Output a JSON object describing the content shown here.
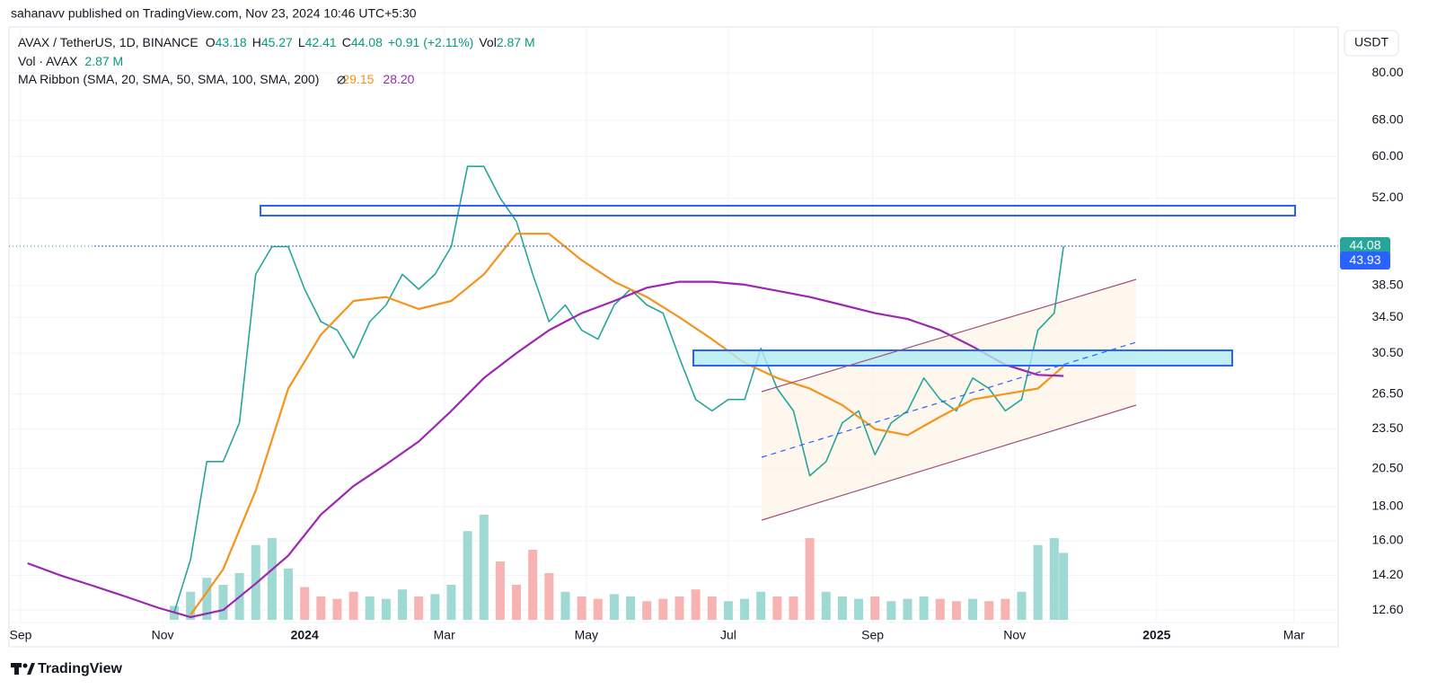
{
  "header": "sahanavv published on TradingView.com, Nov 23, 2024 10:46 UTC+5:30",
  "footer": "TradingView",
  "chart_data": {
    "type": "line",
    "unit": "USDT",
    "log_scale": true,
    "grid": true,
    "legend": {
      "symbol": "AVAX / TetherUS, 1D, BINANCE",
      "ohlc": [
        {
          "key": "O",
          "value": 43.18
        },
        {
          "key": "H",
          "value": 45.27
        },
        {
          "key": "L",
          "value": 42.41
        },
        {
          "key": "C",
          "value": 44.08
        }
      ],
      "change": "+0.91 (+2.11%)",
      "vol_key": "Vol",
      "vol": "2.87 M"
    },
    "volume_legend": {
      "name": "Vol · AVAX",
      "value": "2.87 M"
    },
    "ma_legend": {
      "name": "MA Ribbon (SMA, 20, SMA, 50, SMA, 100, SMA, 200)",
      "values": [
        29.15,
        {
          "value": 28.2,
          "label": "28.20"
        }
      ]
    },
    "mark_price": 43.93,
    "xlim": [
      "2023-08-27",
      "2025-03-20"
    ],
    "xticks": [
      {
        "value": "2023-09-01",
        "label": "Sep"
      },
      {
        "value": "2023-11-01",
        "label": "Nov"
      },
      {
        "value": "2024-01-01",
        "label": "2024"
      },
      {
        "value": "2024-03-01",
        "label": "Mar"
      },
      {
        "value": "2024-05-01",
        "label": "May"
      },
      {
        "value": "2024-07-01",
        "label": "Jul"
      },
      {
        "value": "2024-09-01",
        "label": "Sep"
      },
      {
        "value": "2024-11-01",
        "label": "Nov"
      },
      {
        "value": "2025-01-01",
        "label": "2025"
      },
      {
        "value": "2025-03-01",
        "label": "Mar"
      }
    ],
    "ylim": [
      12.07,
      93.7
    ],
    "yticks": [
      {
        "value": 80,
        "label": "80.00"
      },
      {
        "value": 68,
        "label": "68.00"
      },
      {
        "value": 60,
        "label": "60.00"
      },
      {
        "value": 52,
        "label": "52.00"
      },
      {
        "value": 38.5,
        "label": "38.50"
      },
      {
        "value": 34.5,
        "label": "34.50"
      },
      {
        "value": 30.5,
        "label": "30.50"
      },
      {
        "value": 26.5,
        "label": "26.50"
      },
      {
        "value": 23.5,
        "label": "23.50"
      },
      {
        "value": 20.5,
        "label": "20.50"
      },
      {
        "value": 18,
        "label": "18.00"
      },
      {
        "value": 16,
        "label": "16.00"
      },
      {
        "value": 14.2,
        "label": "14.20"
      },
      {
        "value": 12.6,
        "label": "12.60"
      }
    ],
    "series": [
      {
        "name": "AVAX / TetherUS, 1D, BINANCE",
        "color": "#26a69a",
        "x": [
          "2023-11-06",
          "2023-11-13",
          "2023-11-20",
          "2023-11-27",
          "2023-12-04",
          "2023-12-11",
          "2023-12-18",
          "2023-12-25",
          "2024-01-01",
          "2024-01-08",
          "2024-01-15",
          "2024-01-22",
          "2024-01-29",
          "2024-02-05",
          "2024-02-12",
          "2024-02-19",
          "2024-02-26",
          "2024-03-04",
          "2024-03-11",
          "2024-03-18",
          "2024-03-25",
          "2024-04-01",
          "2024-04-08",
          "2024-04-15",
          "2024-04-22",
          "2024-04-29",
          "2024-05-06",
          "2024-05-13",
          "2024-05-20",
          "2024-05-27",
          "2024-06-03",
          "2024-06-10",
          "2024-06-17",
          "2024-06-24",
          "2024-07-01",
          "2024-07-08",
          "2024-07-15",
          "2024-07-22",
          "2024-07-29",
          "2024-08-05",
          "2024-08-12",
          "2024-08-19",
          "2024-08-26",
          "2024-09-02",
          "2024-09-09",
          "2024-09-16",
          "2024-09-23",
          "2024-09-30",
          "2024-10-07",
          "2024-10-14",
          "2024-10-21",
          "2024-10-28",
          "2024-11-04",
          "2024-11-11",
          "2024-11-18",
          "2024-11-22"
        ],
        "values": [
          12.5,
          15,
          21,
          21,
          24,
          40,
          44,
          44,
          38,
          34,
          33,
          30,
          34,
          36,
          40,
          38,
          40,
          44,
          58,
          58,
          52,
          48,
          40,
          34,
          36,
          33,
          32,
          36,
          38,
          36,
          35,
          30,
          26,
          25,
          26,
          26,
          31,
          27,
          25,
          20,
          21,
          24,
          25,
          21.5,
          24,
          25,
          28,
          26,
          25,
          28,
          27,
          25,
          26,
          33,
          35,
          44.08
        ]
      },
      {
        "color": "#f7931a",
        "x": [
          "2023-11-13",
          "2023-11-27",
          "2023-12-11",
          "2023-12-25",
          "2024-01-08",
          "2024-01-22",
          "2024-02-05",
          "2024-02-19",
          "2024-03-04",
          "2024-03-18",
          "2024-04-01",
          "2024-04-15",
          "2024-04-29",
          "2024-05-13",
          "2024-05-27",
          "2024-06-10",
          "2024-06-24",
          "2024-07-08",
          "2024-07-22",
          "2024-08-05",
          "2024-08-19",
          "2024-09-02",
          "2024-09-16",
          "2024-09-30",
          "2024-10-14",
          "2024-10-28",
          "2024-11-11",
          "2024-11-22"
        ],
        "values": [
          12.4,
          14.5,
          19,
          27,
          32.5,
          36.5,
          37,
          35.5,
          36.5,
          40,
          46,
          46,
          42,
          39,
          37,
          34.5,
          32,
          29.5,
          28,
          27,
          25.5,
          23.5,
          23,
          24.5,
          26,
          26.5,
          27,
          29.15
        ]
      },
      {
        "color": "#9c27b0",
        "x": [
          "2023-09-04",
          "2023-09-18",
          "2023-10-02",
          "2023-10-16",
          "2023-10-30",
          "2023-11-13",
          "2023-11-27",
          "2023-12-11",
          "2023-12-25",
          "2024-01-08",
          "2024-01-22",
          "2024-02-05",
          "2024-02-19",
          "2024-03-04",
          "2024-03-18",
          "2024-04-01",
          "2024-04-15",
          "2024-04-29",
          "2024-05-13",
          "2024-05-27",
          "2024-06-10",
          "2024-06-24",
          "2024-07-08",
          "2024-07-22",
          "2024-08-05",
          "2024-08-19",
          "2024-09-02",
          "2024-09-16",
          "2024-09-30",
          "2024-10-14",
          "2024-10-28",
          "2024-11-11",
          "2024-11-22"
        ],
        "values": [
          14.8,
          14.2,
          13.7,
          13.2,
          12.7,
          12.3,
          12.6,
          13.8,
          15.2,
          17.5,
          19.3,
          20.8,
          22.5,
          25,
          28,
          30.5,
          33,
          35,
          36.5,
          38.2,
          39,
          39,
          38.6,
          37.8,
          37,
          36,
          35,
          34.3,
          33,
          31.2,
          29.3,
          28.3,
          28.2
        ]
      }
    ],
    "volume": {
      "up_color": "#9fd9d3",
      "down_color": "#f7b3b1",
      "values": [
        0.6,
        1.2,
        1.8,
        1.5,
        2.0,
        3.2,
        3.5,
        2.2,
        1.4,
        1.0,
        0.9,
        1.2,
        1.0,
        0.9,
        1.3,
        1.0,
        1.1,
        1.5,
        3.8,
        4.5,
        2.5,
        1.5,
        3.0,
        2.0,
        1.2,
        1.0,
        0.9,
        1.1,
        1.0,
        0.8,
        0.9,
        1.0,
        1.3,
        1.0,
        0.8,
        0.9,
        1.2,
        1.0,
        1.0,
        3.5,
        1.2,
        1.0,
        0.9,
        1.0,
        0.8,
        0.9,
        1.0,
        0.9,
        0.8,
        0.9,
        0.8,
        0.9,
        1.2,
        3.2,
        3.5,
        2.87
      ]
    },
    "mark_color": "#2962ff"
  }
}
